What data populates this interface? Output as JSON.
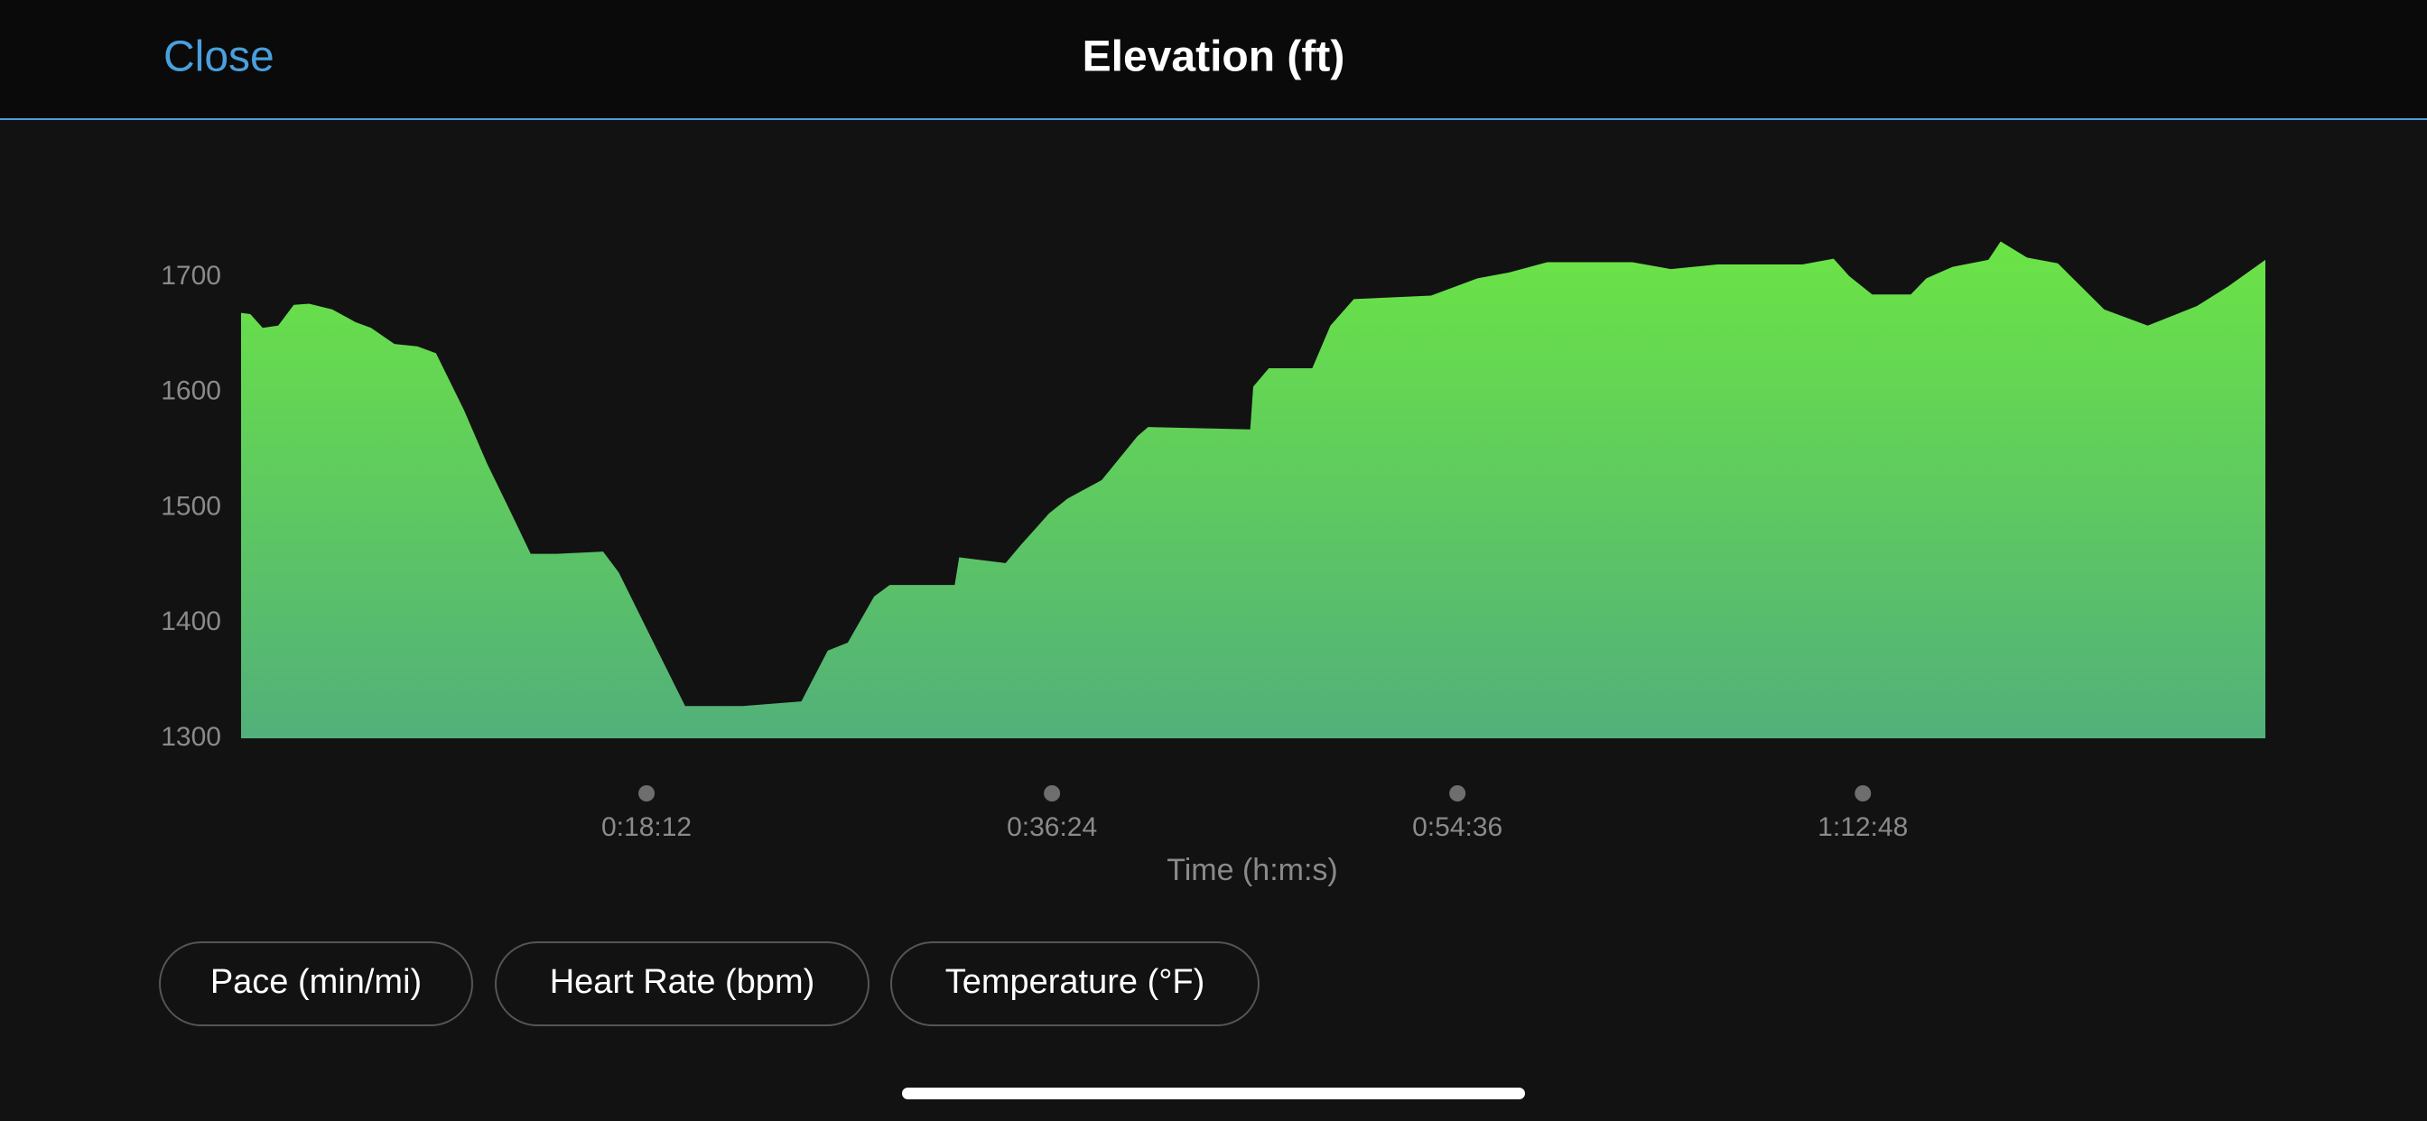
{
  "header": {
    "close": "Close"
  },
  "chart_data": {
    "type": "area",
    "title": "Elevation (ft)",
    "x_label": "Time (h:m:s)",
    "color_top": "#6be445",
    "color_bottom": "#52b07a",
    "x": [
      0,
      25,
      58,
      100,
      142,
      183,
      246,
      308,
      350,
      413,
      475,
      525,
      600,
      663,
      725,
      780,
      850,
      975,
      1017,
      1100,
      1196,
      1351,
      1509,
      1580,
      1634,
      1705,
      1747,
      1922,
      1934,
      2059,
      2101,
      2176,
      2226,
      2318,
      2414,
      2443,
      2718,
      2726,
      2768,
      2885,
      2934,
      2997,
      3205,
      3330,
      3414,
      3518,
      3747,
      3851,
      3976,
      4205,
      4289,
      4331,
      4393,
      4497,
      4539,
      4610,
      4706,
      4739,
      4810,
      4893,
      5018,
      5135,
      5268,
      5352,
      5452
    ],
    "values": [
      1669,
      1668,
      1656,
      1658,
      1676,
      1677,
      1672,
      1661,
      1656,
      1642,
      1640,
      1634,
      1585,
      1538,
      1497,
      1460,
      1460,
      1462,
      1444,
      1390,
      1328,
      1328,
      1332,
      1376,
      1383,
      1423,
      1433,
      1433,
      1457,
      1452,
      1468,
      1495,
      1508,
      1524,
      1562,
      1570,
      1568,
      1605,
      1621,
      1621,
      1658,
      1681,
      1684,
      1699,
      1704,
      1713,
      1713,
      1707,
      1711,
      1711,
      1716,
      1701,
      1685,
      1685,
      1699,
      1709,
      1715,
      1731,
      1717,
      1712,
      1672,
      1658,
      1675,
      1692,
      1715
    ],
    "xlim": [
      0,
      5452
    ],
    "xticks": [
      {
        "value": 1092,
        "label": "0:18:12"
      },
      {
        "value": 2184,
        "label": "0:36:24"
      },
      {
        "value": 3276,
        "label": "0:54:36"
      },
      {
        "value": 4368,
        "label": "1:12:48"
      }
    ],
    "ylim": [
      1300,
      1740
    ],
    "yticks": [
      1300,
      1400,
      1500,
      1600,
      1700
    ]
  },
  "buttons": [
    "Pace (min/mi)",
    "Heart Rate (bpm)",
    "Temperature (°F)"
  ]
}
